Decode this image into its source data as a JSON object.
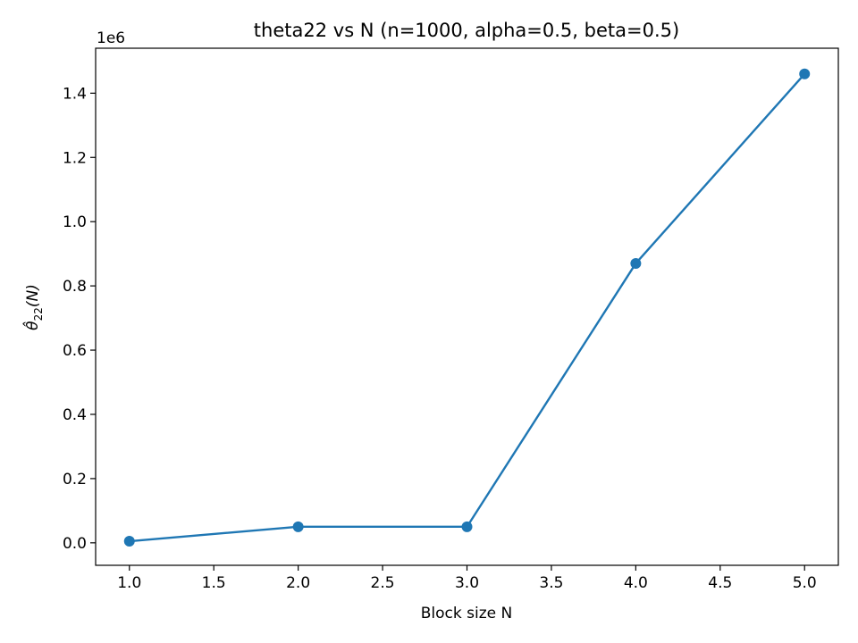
{
  "chart_data": {
    "type": "line",
    "title": "theta22 vs N  (n=1000, alpha=0.5, beta=0.5)",
    "xlabel": "Block size N",
    "ylabel": "θ̂22(N)",
    "ylabel_parts": {
      "symbol": "θ̂",
      "subscript": "22",
      "arg": "(N)"
    },
    "y_offset_text": "1e6",
    "xlim": [
      0.8,
      5.2
    ],
    "ylim": [
      -0.07,
      1.54
    ],
    "x_ticks": [
      1.0,
      1.5,
      2.0,
      2.5,
      3.0,
      3.5,
      4.0,
      4.5,
      5.0
    ],
    "x_tick_labels": [
      "1.0",
      "1.5",
      "2.0",
      "2.5",
      "3.0",
      "3.5",
      "4.0",
      "4.5",
      "5.0"
    ],
    "y_ticks": [
      0.0,
      0.2,
      0.4,
      0.6,
      0.8,
      1.0,
      1.2,
      1.4
    ],
    "y_tick_labels": [
      "0.0",
      "0.2",
      "0.4",
      "0.6",
      "0.8",
      "1.0",
      "1.2",
      "1.4"
    ],
    "grid": false,
    "series": [
      {
        "color": "#1f77b4",
        "marker": "circle",
        "x": [
          1,
          2,
          3,
          4,
          5
        ],
        "y": [
          0.005,
          0.05,
          0.05,
          0.87,
          1.46
        ]
      }
    ]
  }
}
